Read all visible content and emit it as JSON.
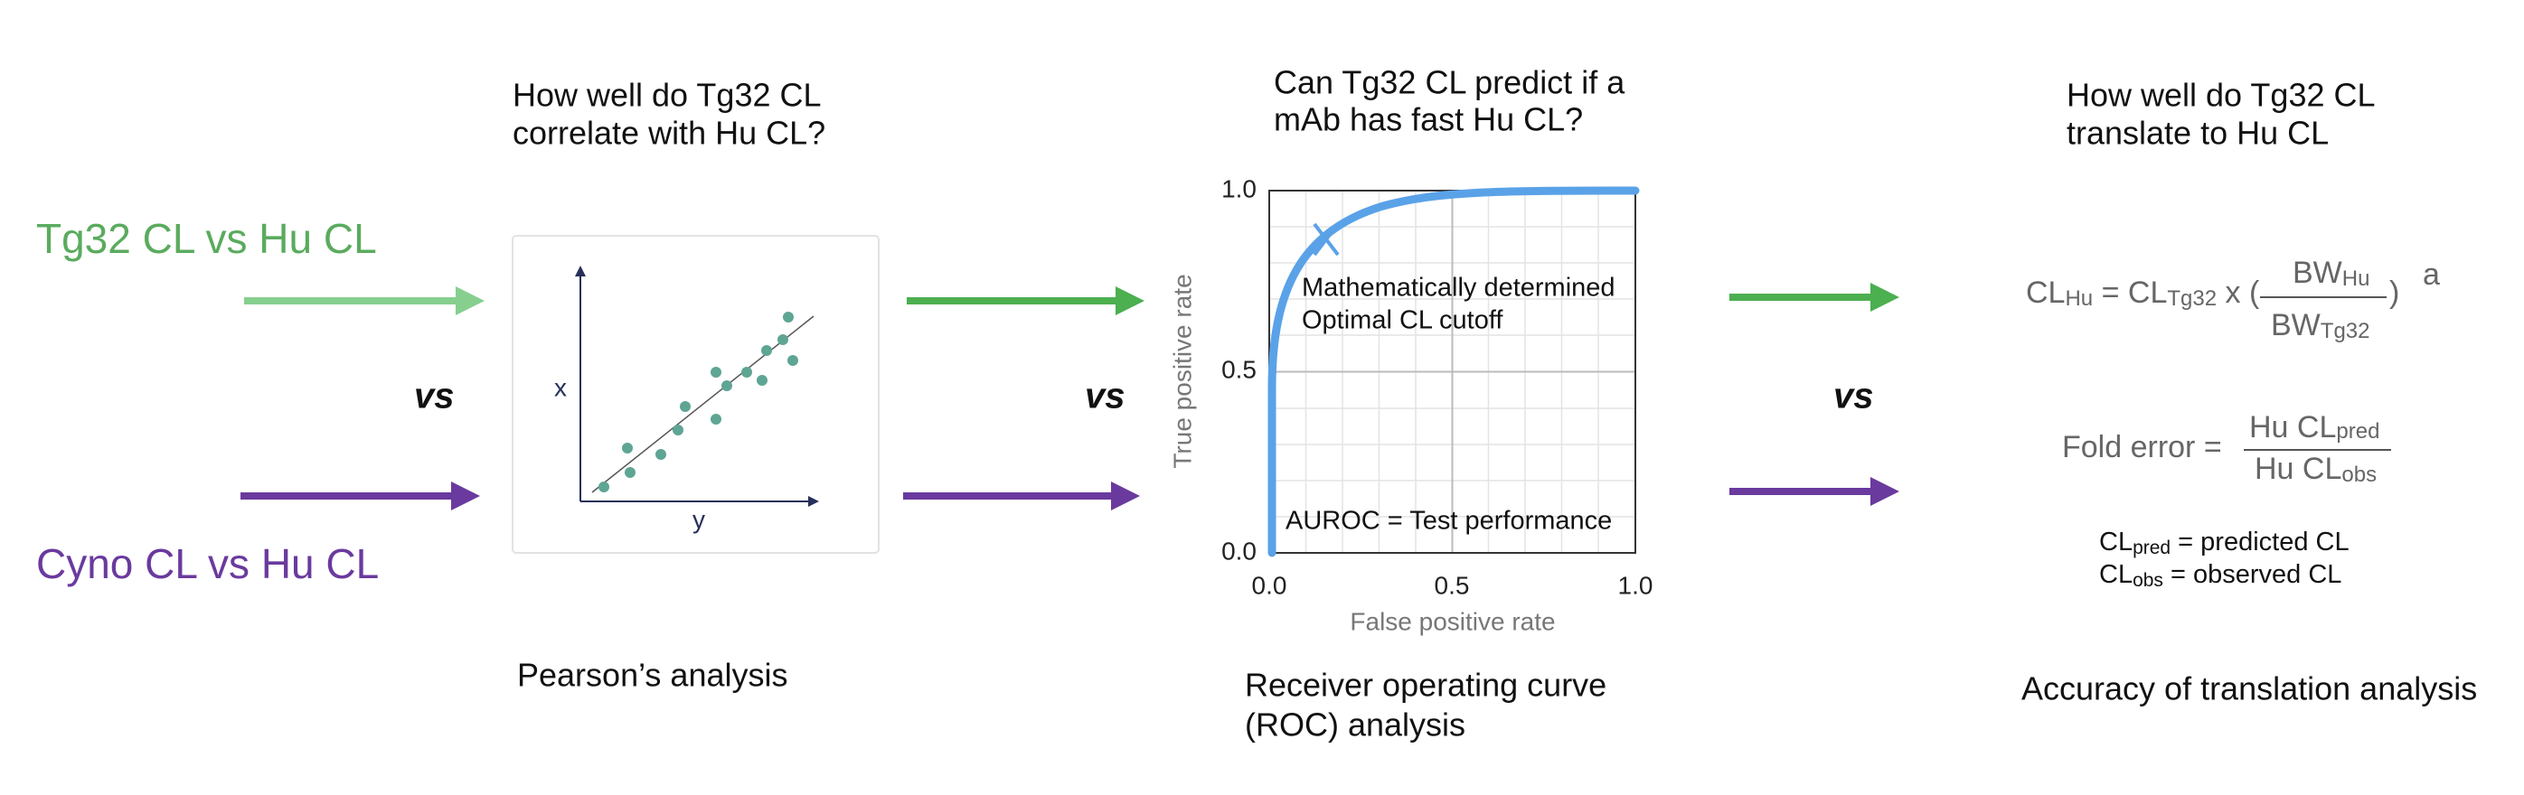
{
  "rows": [
    {
      "label": "Tg32 CL vs Hu CL"
    },
    {
      "label": "Cyno CL vs Hu CL"
    }
  ],
  "separators": [
    "vs",
    "vs",
    "vs"
  ],
  "panels": [
    {
      "question": [
        "How well do Tg32 CL",
        "correlate with Hu CL?"
      ],
      "caption": [
        "Pearson’s analysis"
      ],
      "vertical_axis": "x",
      "horizontal_axis": "y"
    },
    {
      "question": [
        "Can Tg32 CL predict if a",
        "mAb has fast Hu CL?"
      ],
      "caption": [
        "Receiver operating curve",
        "(ROC) analysis"
      ],
      "roc": {
        "x_label": "False positive rate",
        "y_label": "True positive rate",
        "x_ticks": [
          "0.0",
          "0.5",
          "1.0"
        ],
        "y_ticks": [
          "0.0",
          "0.5",
          "1.0"
        ],
        "annotation": [
          "Mathematically determined",
          "Optimal CL cutoff"
        ],
        "auroc": "AUROC = Test performance"
      }
    },
    {
      "question": [
        "How well do Tg32 CL",
        "translate to Hu CL"
      ],
      "caption": [
        "Accuracy of translation analysis"
      ],
      "formula": {
        "lhs": "CL",
        "lhs_sub": "Hu",
        "eq": " = CL",
        "eq_sub": "Tg32",
        "times": " x (",
        "num": "BW",
        "num_sub": "Hu",
        "den": "BW",
        "den_sub": "Tg32",
        "close": ")",
        "exp": "a"
      },
      "fold_error": {
        "label": "Fold error = ",
        "num": "Hu CL",
        "num_sub": "pred",
        "den": "Hu CL",
        "den_sub": "obs"
      },
      "definitions": [
        {
          "term": "CL",
          "sub": "pred",
          "text": " = predicted CL"
        },
        {
          "term": "CL",
          "sub": "obs",
          "text": " = observed CL"
        }
      ]
    }
  ]
}
